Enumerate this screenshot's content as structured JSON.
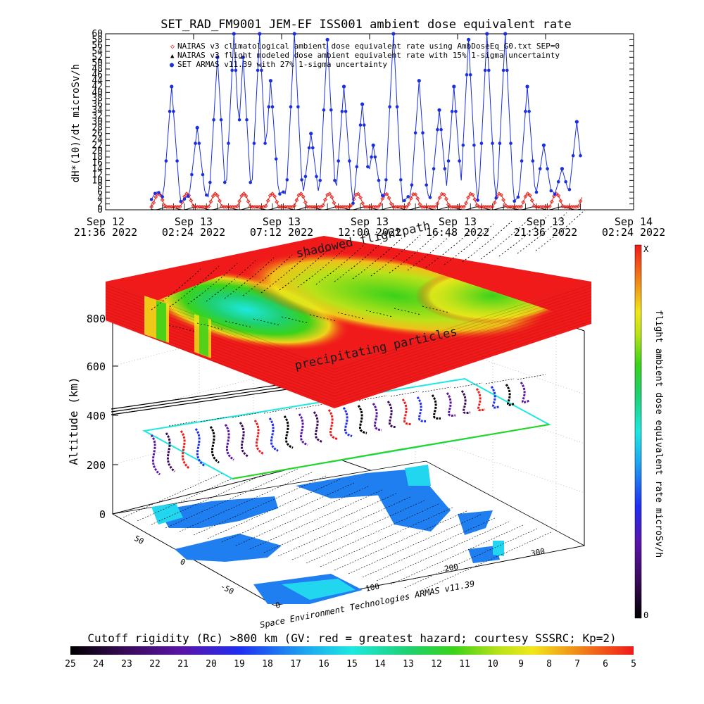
{
  "chart_data": [
    {
      "type": "line",
      "title": "SET_RAD_FM9001  JEM-EF ISS001 ambient dose equivalent rate",
      "ylabel": "dH*(10)/dt microSv/h",
      "ylim": [
        0,
        60
      ],
      "y_ticks": [
        0,
        2,
        4,
        6,
        8,
        10,
        12,
        14,
        16,
        18,
        20,
        22,
        24,
        26,
        28,
        30,
        32,
        34,
        36,
        38,
        40,
        42,
        44,
        46,
        48,
        50,
        52,
        54,
        56,
        58,
        60
      ],
      "x_ticks": [
        {
          "line1": "Sep 12",
          "line2": "21:36 2022"
        },
        {
          "line1": "Sep 13",
          "line2": "02:24 2022"
        },
        {
          "line1": "Sep 13",
          "line2": "07:12 2022"
        },
        {
          "line1": "Sep 13",
          "line2": "12:00 2022"
        },
        {
          "line1": "Sep 13",
          "line2": "16:48 2022"
        },
        {
          "line1": "Sep 13",
          "line2": "21:36 2022"
        },
        {
          "line1": "Sep 14",
          "line2": "02:24 2022"
        }
      ],
      "x_unit": "hours since Sep 12 21:36 2022",
      "xlim": [
        0,
        28.8
      ],
      "legend": [
        {
          "symbol": "◇",
          "color": "#e8231c",
          "text": "NAIRAS v3 climatological ambient dose equivalent rate using AmbDoseEq_G0.txt SEP=0"
        },
        {
          "symbol": "▲",
          "color": "#000000",
          "text": "NAIRAS v3 flight modeled dose ambient equivalent rate with 15% 1-sigma uncertainty"
        },
        {
          "symbol": "●",
          "color": "#1a2fe0",
          "text": "SET ARMAS v11.39 with 27% 1-sigma uncertainty"
        }
      ],
      "legend_position": "top",
      "series": [
        {
          "name": "SET ARMAS v11.39 with 27% 1-sigma uncertainty",
          "color": "#1a2fe0",
          "peaks": [
            {
              "x": 3.6,
              "y": 42
            },
            {
              "x": 5.0,
              "y": 28
            },
            {
              "x": 6.1,
              "y": 52
            },
            {
              "x": 7.0,
              "y": 60
            },
            {
              "x": 7.5,
              "y": 52
            },
            {
              "x": 8.4,
              "y": 60
            },
            {
              "x": 9.0,
              "y": 44
            },
            {
              "x": 10.3,
              "y": 60
            },
            {
              "x": 11.2,
              "y": 26
            },
            {
              "x": 12.1,
              "y": 58
            },
            {
              "x": 13.0,
              "y": 42
            },
            {
              "x": 14.0,
              "y": 36
            },
            {
              "x": 14.6,
              "y": 22
            },
            {
              "x": 15.7,
              "y": 60
            },
            {
              "x": 17.1,
              "y": 44
            },
            {
              "x": 18.2,
              "y": 34
            },
            {
              "x": 19.0,
              "y": 42
            },
            {
              "x": 19.8,
              "y": 58
            },
            {
              "x": 20.8,
              "y": 60
            },
            {
              "x": 21.8,
              "y": 60
            },
            {
              "x": 23.0,
              "y": 42
            },
            {
              "x": 23.9,
              "y": 22
            },
            {
              "x": 24.9,
              "y": 14
            },
            {
              "x": 25.7,
              "y": 30
            }
          ]
        },
        {
          "name": "NAIRAS v3 climatological ambient dose equivalent rate using AmbDoseEq_G0.txt SEP=0",
          "color": "#e8231c",
          "min": 1,
          "max": 5.5,
          "period_h": 1.55
        },
        {
          "name": "NAIRAS v3 flight modeled dose ambient equivalent rate with 15% 1-sigma uncertainty",
          "color": "#000000",
          "min": 0,
          "max": 1
        }
      ],
      "data_range_h": [
        2.5,
        26.0
      ]
    },
    {
      "type": "heatmap",
      "ylabel": "Altitude (km)",
      "z_ticks": [
        "0",
        "200",
        "400",
        "600",
        "800"
      ],
      "lat_ticks": [
        "50",
        "0",
        "-50"
      ],
      "lon_ticks": [
        "0",
        "100",
        "200",
        "300"
      ],
      "layer_labels": [
        "shadowed flightpath",
        "precipitating particles"
      ],
      "credit": "Space Environment Technologies ARMAS v11.39"
    },
    {
      "type": "heatmap",
      "title": "Cutoff rigidity (Rc) >800 km (GV: red = greatest hazard; courtesy SSSRC; Kp=2)",
      "colorbar_ticks": [
        "25",
        "24",
        "23",
        "22",
        "21",
        "20",
        "19",
        "18",
        "17",
        "16",
        "15",
        "14",
        "13",
        "12",
        "11",
        "10",
        "9",
        "8",
        "7",
        "6",
        "5"
      ],
      "vertical_colorbar": {
        "label": "flight ambient dose equivalent rate microSv/h",
        "top": "X",
        "bottom": "0"
      }
    }
  ]
}
